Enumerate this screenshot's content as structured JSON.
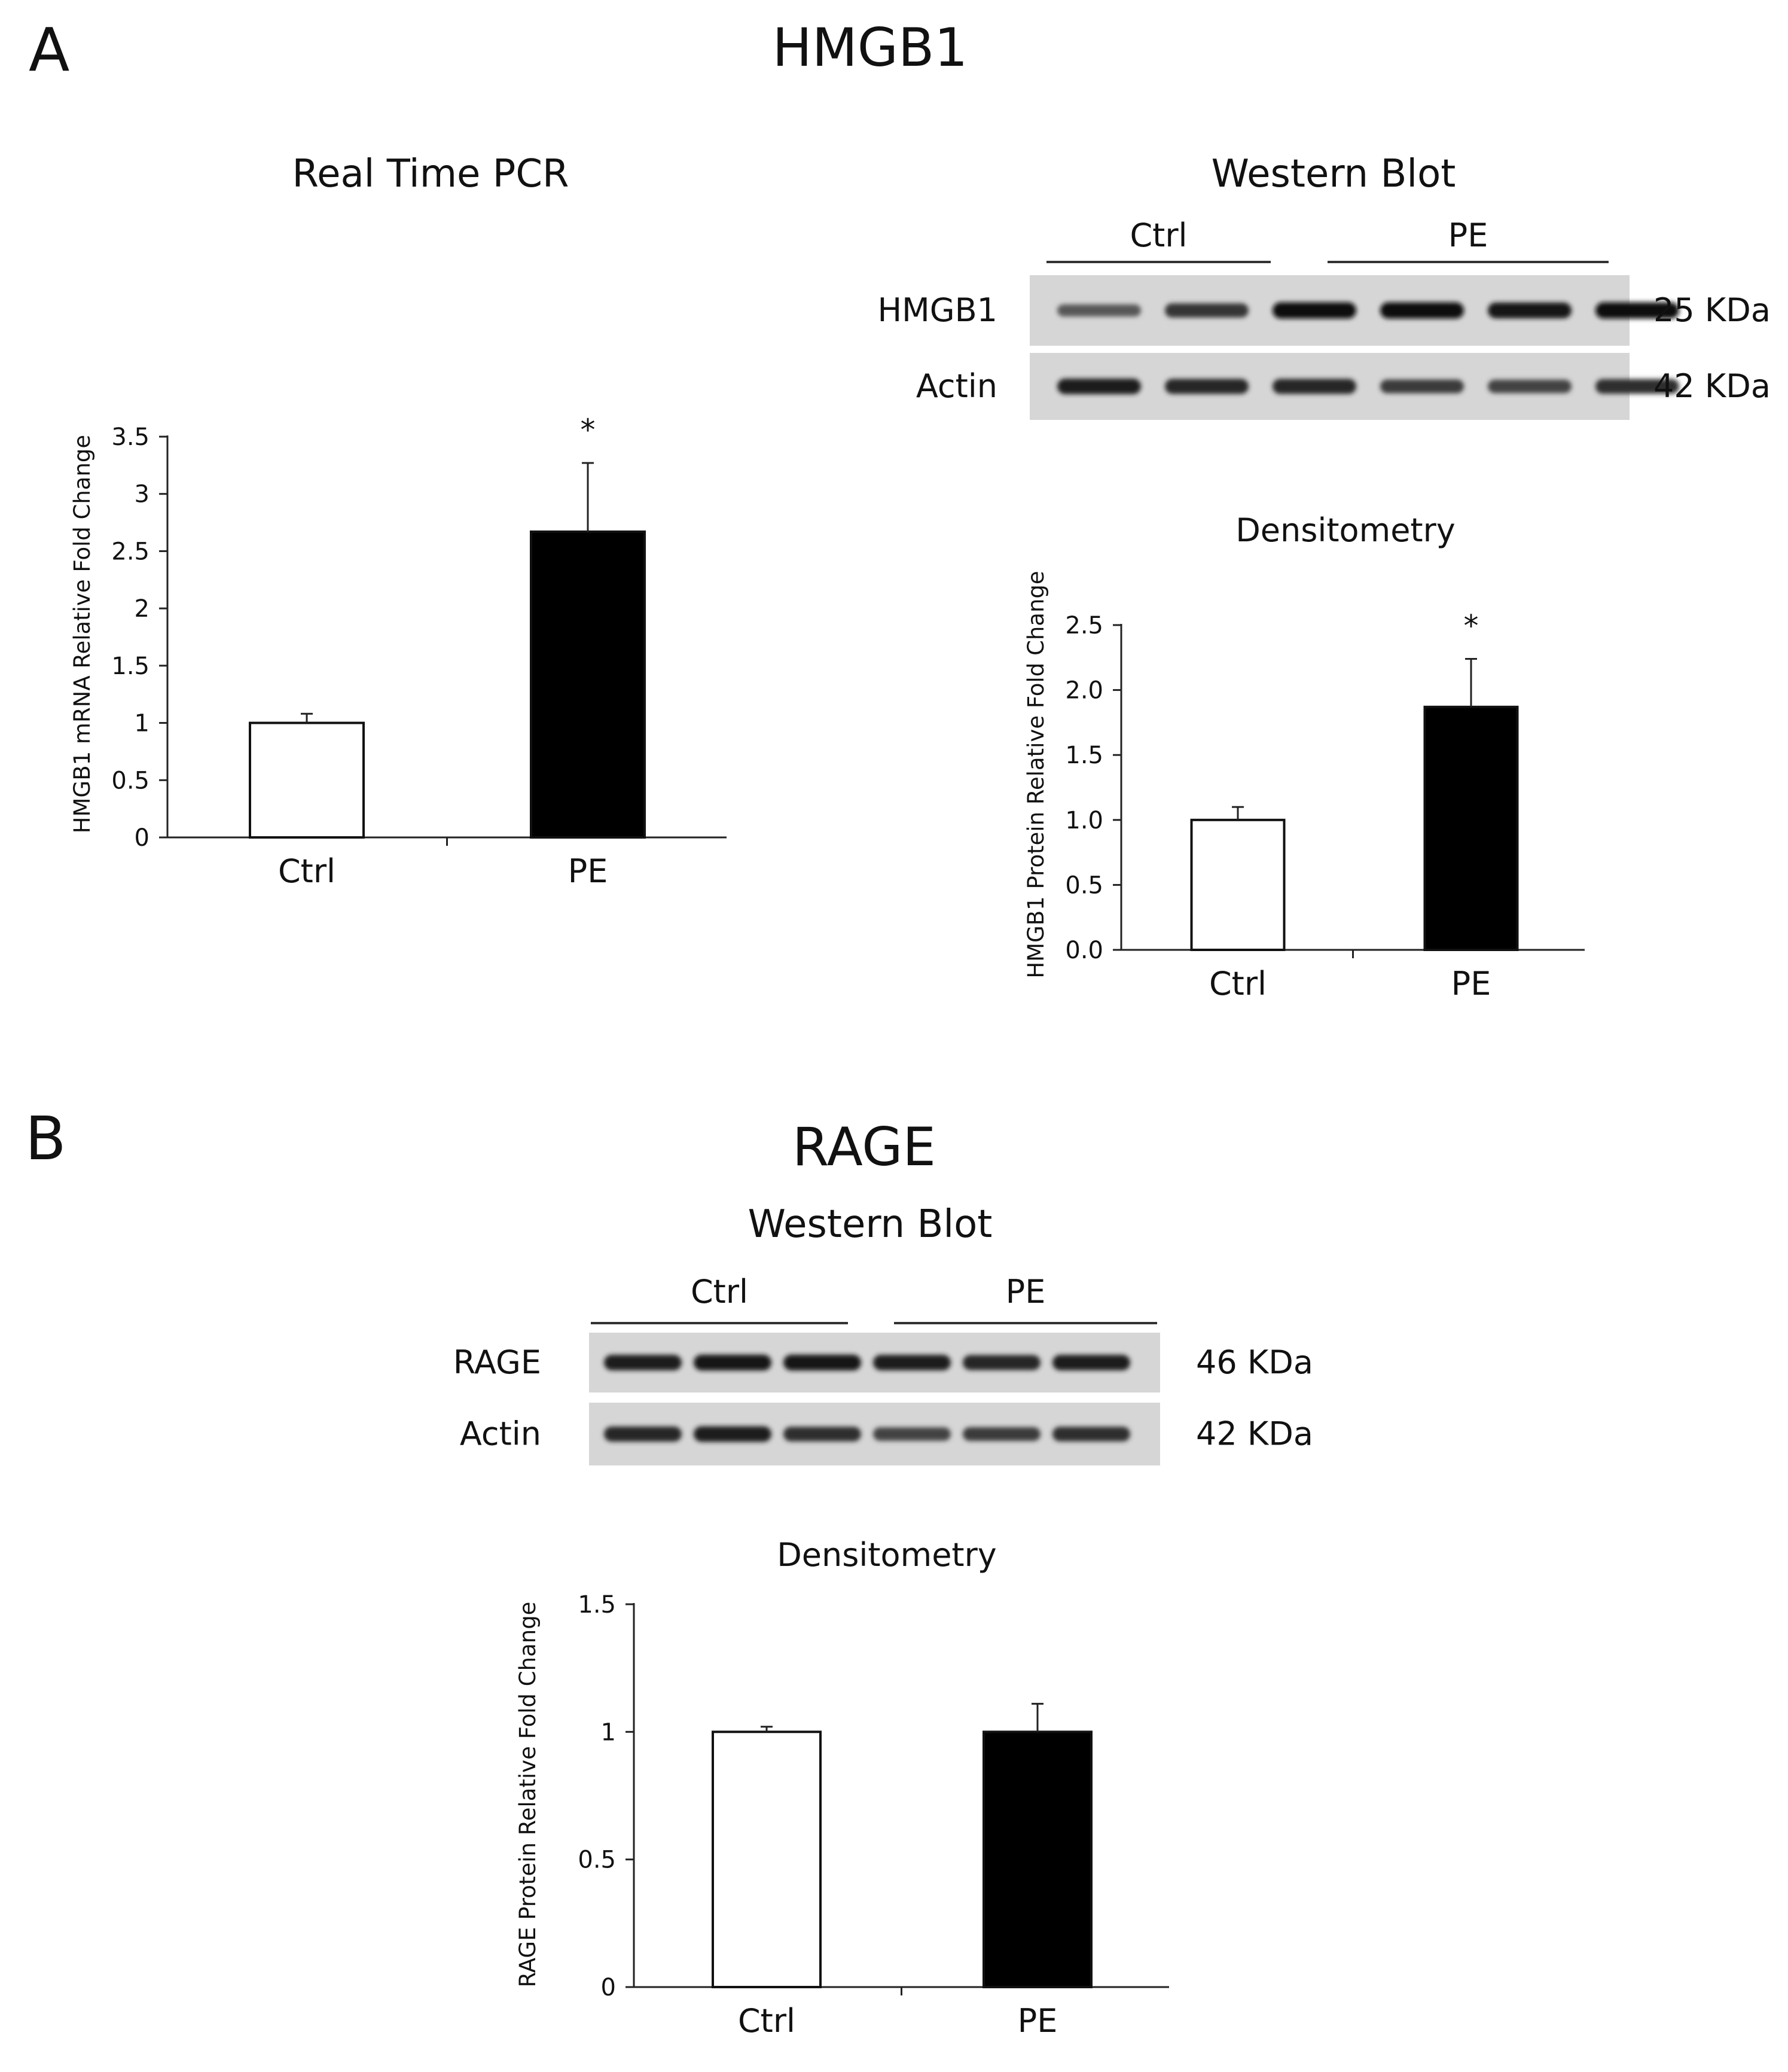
{
  "figure": {
    "panels": [
      {
        "letter": "A",
        "title": "HMGB1"
      },
      {
        "letter": "B",
        "title": "RAGE"
      }
    ]
  },
  "blots": [
    {
      "title": "Western Blot",
      "groups": [
        {
          "label": "Ctrl",
          "lanes": [
            0,
            1,
            2
          ]
        },
        {
          "label": "PE",
          "lanes": [
            3,
            4,
            5
          ]
        }
      ],
      "rows": [
        {
          "protein": "HMGB1",
          "size": "25 KDa",
          "band_intensity": [
            0.45,
            0.7,
            0.95,
            0.95,
            0.9,
            0.95
          ]
        },
        {
          "protein": "Actin",
          "size": "42 KDa",
          "band_intensity": [
            0.85,
            0.8,
            0.8,
            0.65,
            0.6,
            0.75
          ]
        }
      ]
    },
    {
      "title": "Western Blot",
      "groups": [
        {
          "label": "Ctrl",
          "lanes": [
            0,
            1,
            2
          ]
        },
        {
          "label": "PE",
          "lanes": [
            3,
            4,
            5
          ]
        }
      ],
      "rows": [
        {
          "protein": "RAGE",
          "size": "46 KDa",
          "band_intensity": [
            0.85,
            0.9,
            0.9,
            0.85,
            0.8,
            0.85
          ]
        },
        {
          "protein": "Actin",
          "size": "42 KDa",
          "band_intensity": [
            0.8,
            0.85,
            0.75,
            0.6,
            0.65,
            0.75
          ]
        }
      ]
    }
  ],
  "chart_data": [
    {
      "type": "bar",
      "title": "Real Time PCR",
      "categories": [
        "Ctrl",
        "PE"
      ],
      "values": [
        1.0,
        2.67
      ],
      "errors": [
        0.08,
        0.6
      ],
      "significance": [
        "",
        "*"
      ],
      "bar_colors": [
        "#ffffff",
        "#000000"
      ],
      "ylabel": "HMGB1 mRNA Relative Fold Change",
      "ylim": [
        0,
        3.5
      ],
      "yticks": [
        "0",
        "0.5",
        "1",
        "1.5",
        "2",
        "2.5",
        "3",
        "3.5"
      ],
      "grid": false
    },
    {
      "type": "bar",
      "title": "Densitometry",
      "categories": [
        "Ctrl",
        "PE"
      ],
      "values": [
        1.0,
        1.87
      ],
      "errors": [
        0.1,
        0.37
      ],
      "significance": [
        "",
        "*"
      ],
      "bar_colors": [
        "#ffffff",
        "#000000"
      ],
      "ylabel": "HMGB1 Protein Relative Fold Change",
      "ylim": [
        0,
        2.5
      ],
      "yticks": [
        "0.0",
        "0.5",
        "1.0",
        "1.5",
        "2.0",
        "2.5"
      ],
      "grid": false
    },
    {
      "type": "bar",
      "title": "Densitometry",
      "categories": [
        "Ctrl",
        "PE"
      ],
      "values": [
        1.0,
        1.0
      ],
      "errors": [
        0.02,
        0.11
      ],
      "significance": [
        "",
        ""
      ],
      "bar_colors": [
        "#ffffff",
        "#000000"
      ],
      "ylabel": "RAGE Protein Relative Fold Change",
      "ylim": [
        0,
        1.5
      ],
      "yticks": [
        "0",
        "0.5",
        "1",
        "1.5"
      ],
      "grid": false
    }
  ]
}
